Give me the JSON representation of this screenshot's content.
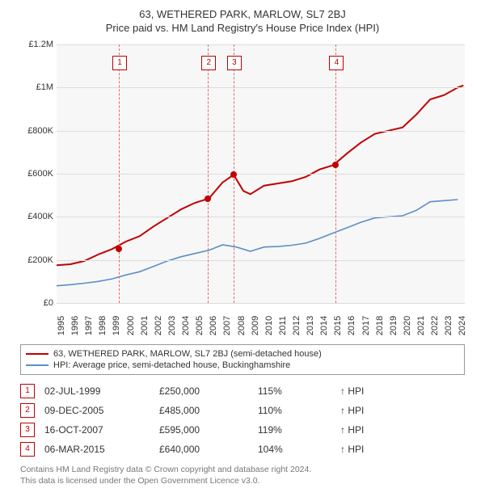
{
  "header": {
    "title": "63, WETHERED PARK, MARLOW, SL7 2BJ",
    "subtitle": "Price paid vs. HM Land Registry's House Price Index (HPI)"
  },
  "chart": {
    "type": "line",
    "plot_background": "#f7f7f7",
    "grid_color": "#dcdcdc",
    "text_color": "#333333",
    "axis_fontsize": 11,
    "x": {
      "min": 1995,
      "max": 2024.5,
      "ticks": [
        1995,
        1996,
        1997,
        1998,
        1999,
        2000,
        2001,
        2002,
        2003,
        2004,
        2005,
        2006,
        2007,
        2008,
        2009,
        2010,
        2011,
        2012,
        2013,
        2014,
        2015,
        2016,
        2017,
        2018,
        2019,
        2020,
        2021,
        2022,
        2023,
        2024
      ]
    },
    "y": {
      "min": 0,
      "max": 1200000,
      "ticks": [
        {
          "v": 0,
          "label": "£0"
        },
        {
          "v": 200000,
          "label": "£200K"
        },
        {
          "v": 400000,
          "label": "£400K"
        },
        {
          "v": 600000,
          "label": "£600K"
        },
        {
          "v": 800000,
          "label": "£800K"
        },
        {
          "v": 1000000,
          "label": "£1M"
        },
        {
          "v": 1200000,
          "label": "£1.2M"
        }
      ]
    },
    "series": [
      {
        "id": "property",
        "color": "#c00000",
        "width": 2,
        "points": [
          [
            1995,
            175000
          ],
          [
            1996,
            180000
          ],
          [
            1997,
            195000
          ],
          [
            1998,
            225000
          ],
          [
            1999,
            250000
          ],
          [
            2000,
            285000
          ],
          [
            2001,
            310000
          ],
          [
            2002,
            355000
          ],
          [
            2003,
            395000
          ],
          [
            2004,
            435000
          ],
          [
            2005,
            465000
          ],
          [
            2006,
            485000
          ],
          [
            2007,
            560000
          ],
          [
            2007.8,
            595000
          ],
          [
            2008.5,
            520000
          ],
          [
            2009,
            505000
          ],
          [
            2010,
            545000
          ],
          [
            2011,
            555000
          ],
          [
            2012,
            565000
          ],
          [
            2013,
            585000
          ],
          [
            2014,
            620000
          ],
          [
            2015,
            640000
          ],
          [
            2016,
            695000
          ],
          [
            2017,
            745000
          ],
          [
            2018,
            785000
          ],
          [
            2019,
            800000
          ],
          [
            2020,
            815000
          ],
          [
            2021,
            875000
          ],
          [
            2022,
            945000
          ],
          [
            2023,
            965000
          ],
          [
            2024,
            1000000
          ],
          [
            2024.4,
            1010000
          ]
        ]
      },
      {
        "id": "hpi",
        "color": "#5b8fc5",
        "width": 1.6,
        "points": [
          [
            1995,
            80000
          ],
          [
            1996,
            85000
          ],
          [
            1997,
            92000
          ],
          [
            1998,
            100000
          ],
          [
            1999,
            112000
          ],
          [
            2000,
            130000
          ],
          [
            2001,
            145000
          ],
          [
            2002,
            170000
          ],
          [
            2003,
            195000
          ],
          [
            2004,
            215000
          ],
          [
            2005,
            230000
          ],
          [
            2006,
            245000
          ],
          [
            2007,
            270000
          ],
          [
            2008,
            260000
          ],
          [
            2009,
            240000
          ],
          [
            2010,
            260000
          ],
          [
            2011,
            262000
          ],
          [
            2012,
            268000
          ],
          [
            2013,
            278000
          ],
          [
            2014,
            300000
          ],
          [
            2015,
            325000
          ],
          [
            2016,
            350000
          ],
          [
            2017,
            375000
          ],
          [
            2018,
            395000
          ],
          [
            2019,
            400000
          ],
          [
            2020,
            405000
          ],
          [
            2021,
            430000
          ],
          [
            2022,
            470000
          ],
          [
            2023,
            475000
          ],
          [
            2024,
            480000
          ]
        ]
      }
    ],
    "markers": [
      {
        "x": 1999.5,
        "y": 250000
      },
      {
        "x": 2005.94,
        "y": 485000
      },
      {
        "x": 2007.79,
        "y": 595000
      },
      {
        "x": 2015.18,
        "y": 640000
      }
    ],
    "guides": [
      {
        "n": "1",
        "x": 1999.5
      },
      {
        "n": "2",
        "x": 2005.94
      },
      {
        "n": "3",
        "x": 2007.79
      },
      {
        "n": "4",
        "x": 2015.18
      }
    ],
    "guide_color": "#e46a6a",
    "marker_color": "#c00000",
    "badge_border": "#c00000"
  },
  "legend": {
    "items": [
      {
        "color": "#c00000",
        "label": "63, WETHERED PARK, MARLOW, SL7 2BJ (semi-detached house)"
      },
      {
        "color": "#5b8fc5",
        "label": "HPI: Average price, semi-detached house, Buckinghamshire"
      }
    ]
  },
  "transactions": [
    {
      "n": "1",
      "date": "02-JUL-1999",
      "price": "£250,000",
      "pct": "115%",
      "suffix": "↑ HPI"
    },
    {
      "n": "2",
      "date": "09-DEC-2005",
      "price": "£485,000",
      "pct": "110%",
      "suffix": "↑ HPI"
    },
    {
      "n": "3",
      "date": "16-OCT-2007",
      "price": "£595,000",
      "pct": "119%",
      "suffix": "↑ HPI"
    },
    {
      "n": "4",
      "date": "06-MAR-2015",
      "price": "£640,000",
      "pct": "104%",
      "suffix": "↑ HPI"
    }
  ],
  "attribution": {
    "line1": "Contains HM Land Registry data © Crown copyright and database right 2024.",
    "line2": "This data is licensed under the Open Government Licence v3.0."
  }
}
